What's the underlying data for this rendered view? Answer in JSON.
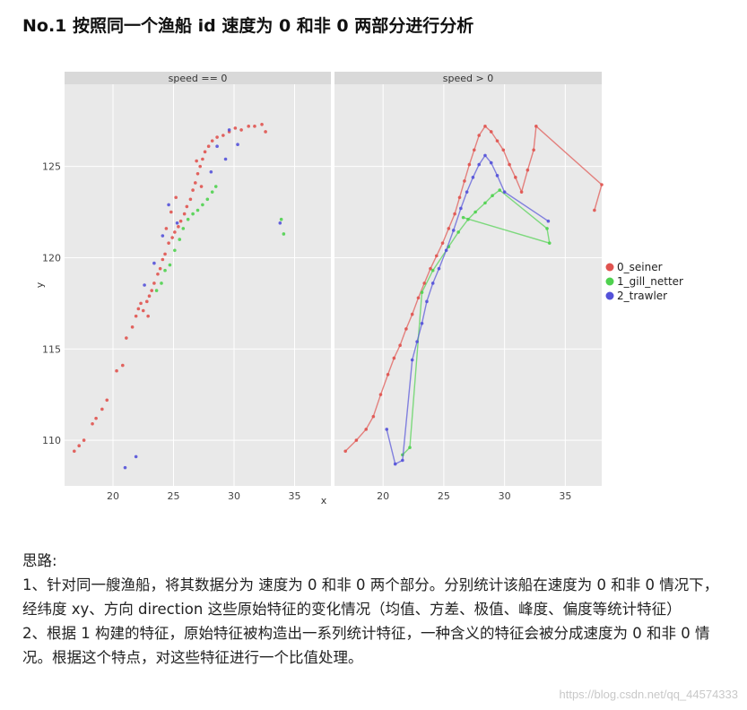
{
  "page": {
    "heading": "No.1  按照同一个渔船 id 速度为 0 和非 0 两部分进行分析",
    "paragraphs": [
      "思路:",
      "1、针对同一艘渔船，将其数据分为 速度为 0 和非 0 两个部分。分别统计该船在速度为 0  和非 0 情况下，经纬度 xy、方向 direction 这些原始特征的变化情况（均值、方差、极值、峰度、偏度等统计特征）",
      "2、根据 1 构建的特征，原始特征被构造出一系列统计特征，一种含义的特征会被分成速度为 0 和非 0 情况。根据这个特点，对这些特征进行一个比值处理。"
    ],
    "watermark": "https://blog.csdn.net/qq_44574333"
  },
  "chart_data": {
    "type": "scatter",
    "xlabel": "x",
    "ylabel": "y",
    "xlim": [
      16,
      38
    ],
    "ylim": [
      107.5,
      129.5
    ],
    "x_ticks": [
      20,
      25,
      30,
      35
    ],
    "y_ticks": [
      110,
      115,
      120,
      125
    ],
    "grid": true,
    "legend_position": "right",
    "colors": {
      "0_seiner": "#e0534f",
      "1_gill_netter": "#4fd14f",
      "2_trawler": "#5452d9",
      "panel_bg": "#e9e9e9",
      "strip_bg": "#d9d9d9"
    },
    "facets": [
      {
        "label": "speed == 0",
        "series": [
          {
            "name": "0_seiner",
            "points": [
              [
                16.8,
                109.4
              ],
              [
                17.2,
                109.7
              ],
              [
                17.6,
                110.0
              ],
              [
                18.3,
                110.9
              ],
              [
                18.6,
                111.2
              ],
              [
                19.1,
                111.7
              ],
              [
                19.5,
                112.2
              ],
              [
                20.3,
                113.8
              ],
              [
                20.8,
                114.1
              ],
              [
                21.1,
                115.6
              ],
              [
                21.6,
                116.2
              ],
              [
                21.9,
                116.8
              ],
              [
                22.1,
                117.2
              ],
              [
                22.3,
                117.5
              ],
              [
                22.5,
                117.1
              ],
              [
                22.8,
                117.6
              ],
              [
                23.0,
                117.9
              ],
              [
                23.2,
                118.2
              ],
              [
                23.4,
                118.6
              ],
              [
                23.7,
                119.1
              ],
              [
                23.9,
                119.4
              ],
              [
                24.1,
                119.9
              ],
              [
                24.3,
                120.2
              ],
              [
                24.6,
                120.8
              ],
              [
                24.9,
                121.1
              ],
              [
                25.1,
                121.4
              ],
              [
                25.4,
                121.7
              ],
              [
                25.6,
                122.0
              ],
              [
                25.9,
                122.4
              ],
              [
                26.1,
                122.8
              ],
              [
                26.4,
                123.2
              ],
              [
                26.6,
                123.7
              ],
              [
                26.8,
                124.1
              ],
              [
                27.0,
                124.6
              ],
              [
                27.2,
                125.0
              ],
              [
                27.4,
                125.4
              ],
              [
                27.6,
                125.8
              ],
              [
                27.9,
                126.1
              ],
              [
                28.2,
                126.4
              ],
              [
                28.6,
                126.6
              ],
              [
                29.1,
                126.7
              ],
              [
                29.6,
                126.9
              ],
              [
                30.1,
                127.1
              ],
              [
                30.6,
                127.0
              ],
              [
                31.2,
                127.2
              ],
              [
                31.7,
                127.2
              ],
              [
                32.3,
                127.3
              ],
              [
                32.6,
                126.9
              ],
              [
                25.2,
                123.3
              ],
              [
                24.8,
                122.5
              ],
              [
                26.9,
                125.3
              ],
              [
                27.3,
                123.9
              ],
              [
                22.9,
                116.8
              ],
              [
                24.4,
                121.6
              ]
            ]
          },
          {
            "name": "1_gill_netter",
            "points": [
              [
                23.6,
                118.2
              ],
              [
                24.0,
                118.6
              ],
              [
                24.3,
                119.3
              ],
              [
                24.7,
                119.6
              ],
              [
                25.1,
                120.4
              ],
              [
                25.5,
                121.0
              ],
              [
                25.8,
                121.6
              ],
              [
                26.2,
                122.1
              ],
              [
                26.6,
                122.4
              ],
              [
                27.0,
                122.6
              ],
              [
                27.4,
                122.9
              ],
              [
                27.8,
                123.2
              ],
              [
                28.2,
                123.6
              ],
              [
                28.5,
                123.9
              ],
              [
                33.9,
                122.1
              ],
              [
                34.1,
                121.3
              ]
            ]
          },
          {
            "name": "2_trawler",
            "points": [
              [
                21.0,
                108.5
              ],
              [
                21.9,
                109.1
              ],
              [
                22.6,
                118.5
              ],
              [
                23.4,
                119.7
              ],
              [
                24.1,
                121.2
              ],
              [
                24.6,
                122.9
              ],
              [
                25.3,
                121.9
              ],
              [
                28.1,
                124.7
              ],
              [
                28.6,
                126.1
              ],
              [
                29.3,
                125.4
              ],
              [
                29.6,
                127.0
              ],
              [
                30.3,
                126.2
              ],
              [
                33.8,
                121.9
              ]
            ]
          }
        ]
      },
      {
        "label": "speed > 0",
        "series": [
          {
            "name": "0_seiner",
            "points": [
              [
                16.9,
                109.4
              ],
              [
                17.8,
                110.0
              ],
              [
                18.6,
                110.6
              ],
              [
                19.2,
                111.3
              ],
              [
                19.8,
                112.5
              ],
              [
                20.4,
                113.6
              ],
              [
                20.9,
                114.5
              ],
              [
                21.4,
                115.2
              ],
              [
                21.9,
                116.1
              ],
              [
                22.4,
                116.9
              ],
              [
                22.9,
                117.8
              ],
              [
                23.4,
                118.6
              ],
              [
                23.9,
                119.4
              ],
              [
                24.4,
                120.1
              ],
              [
                24.9,
                120.8
              ],
              [
                25.4,
                121.6
              ],
              [
                25.9,
                122.4
              ],
              [
                26.3,
                123.3
              ],
              [
                26.7,
                124.2
              ],
              [
                27.1,
                125.1
              ],
              [
                27.5,
                125.9
              ],
              [
                27.9,
                126.7
              ],
              [
                28.4,
                127.2
              ],
              [
                28.9,
                126.9
              ],
              [
                29.4,
                126.4
              ],
              [
                29.9,
                125.9
              ],
              [
                30.4,
                125.1
              ],
              [
                30.9,
                124.4
              ],
              [
                31.4,
                123.6
              ],
              [
                31.9,
                124.8
              ],
              [
                32.4,
                125.9
              ],
              [
                32.6,
                127.2
              ],
              [
                38.0,
                124.0
              ],
              [
                37.4,
                122.6
              ]
            ]
          },
          {
            "name": "1_gill_netter",
            "points": [
              [
                21.6,
                109.2
              ],
              [
                22.2,
                109.6
              ],
              [
                23.2,
                118.1
              ],
              [
                24.1,
                119.3
              ],
              [
                25.4,
                120.6
              ],
              [
                26.2,
                121.4
              ],
              [
                27.0,
                122.1
              ],
              [
                27.6,
                122.5
              ],
              [
                28.4,
                123.0
              ],
              [
                29.0,
                123.4
              ],
              [
                29.6,
                123.7
              ],
              [
                33.5,
                121.6
              ],
              [
                33.7,
                120.8
              ],
              [
                26.6,
                122.2
              ]
            ]
          },
          {
            "name": "2_trawler",
            "points": [
              [
                20.3,
                110.6
              ],
              [
                21.0,
                108.7
              ],
              [
                21.6,
                108.9
              ],
              [
                22.4,
                114.4
              ],
              [
                22.8,
                115.4
              ],
              [
                23.2,
                116.4
              ],
              [
                23.6,
                117.6
              ],
              [
                24.1,
                118.6
              ],
              [
                24.6,
                119.4
              ],
              [
                25.2,
                120.4
              ],
              [
                25.8,
                121.5
              ],
              [
                26.4,
                122.7
              ],
              [
                26.9,
                123.6
              ],
              [
                27.4,
                124.4
              ],
              [
                27.9,
                125.1
              ],
              [
                28.4,
                125.6
              ],
              [
                28.9,
                125.2
              ],
              [
                29.4,
                124.5
              ],
              [
                30.0,
                123.6
              ],
              [
                33.6,
                122.0
              ]
            ]
          }
        ]
      }
    ]
  }
}
